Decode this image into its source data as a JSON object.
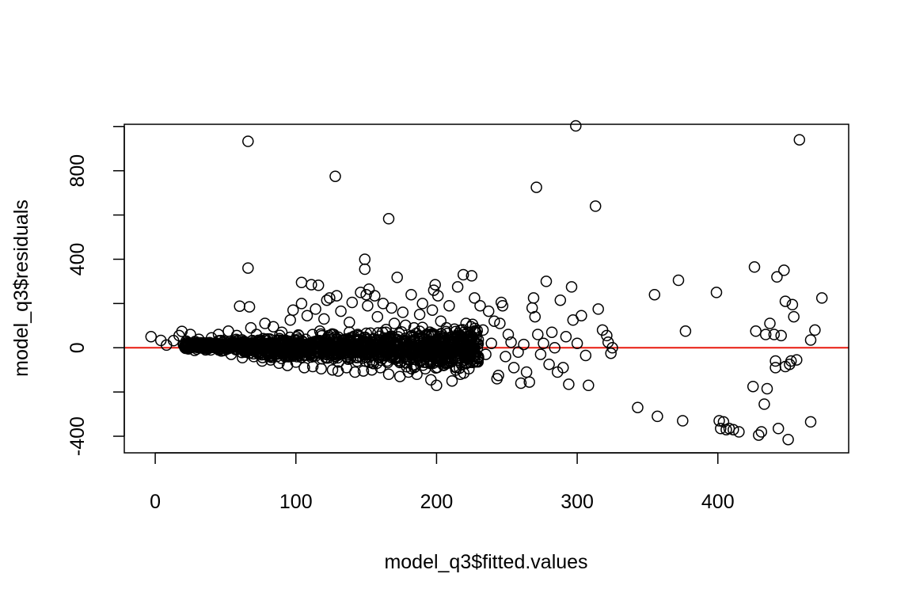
{
  "chart_data": {
    "type": "scatter",
    "title": "",
    "xlabel": "model_q3$fitted.values",
    "ylabel": "model_q3$residuals",
    "xlim": [
      -22,
      493
    ],
    "ylim": [
      -475,
      1010
    ],
    "x_ticks": [
      0,
      100,
      200,
      300,
      400
    ],
    "y_ticks": [
      -400,
      -200,
      0,
      200,
      400,
      600,
      800,
      1000
    ],
    "y_tick_labels": [
      "-400",
      "",
      "0",
      "",
      "400",
      "",
      "800",
      ""
    ],
    "grid": false,
    "legend": "none",
    "marker": "open-circle",
    "point_color": "#000000",
    "reference_line": {
      "y": 0,
      "color": "#e8190f"
    },
    "series": [
      {
        "points": [
          [
            -3,
            50
          ],
          [
            4,
            33
          ],
          [
            8,
            12
          ],
          [
            13,
            32
          ],
          [
            17,
            55
          ],
          [
            19,
            74
          ],
          [
            22,
            30
          ],
          [
            25,
            60
          ],
          [
            28,
            -12
          ],
          [
            31,
            38
          ],
          [
            34,
            22
          ],
          [
            37,
            -5
          ],
          [
            40,
            45
          ],
          [
            42,
            15
          ],
          [
            45,
            60
          ],
          [
            47,
            -15
          ],
          [
            49,
            30
          ],
          [
            52,
            75
          ],
          [
            54,
            -30
          ],
          [
            56,
            10
          ],
          [
            58,
            55
          ],
          [
            60,
            188
          ],
          [
            62,
            -45
          ],
          [
            64,
            20
          ],
          [
            66,
            360
          ],
          [
            66,
            933
          ],
          [
            67,
            185
          ],
          [
            68,
            90
          ],
          [
            70,
            -40
          ],
          [
            72,
            60
          ],
          [
            74,
            15
          ],
          [
            76,
            -60
          ],
          [
            78,
            110
          ],
          [
            80,
            40
          ],
          [
            82,
            -55
          ],
          [
            84,
            95
          ],
          [
            86,
            0
          ],
          [
            88,
            -70
          ],
          [
            90,
            70
          ],
          [
            92,
            30
          ],
          [
            94,
            -80
          ],
          [
            96,
            125
          ],
          [
            98,
            170
          ],
          [
            100,
            -65
          ],
          [
            102,
            55
          ],
          [
            104,
            295
          ],
          [
            104,
            200
          ],
          [
            106,
            -90
          ],
          [
            108,
            145
          ],
          [
            110,
            10
          ],
          [
            111,
            285
          ],
          [
            112,
            -85
          ],
          [
            114,
            175
          ],
          [
            116,
            282
          ],
          [
            117,
            75
          ],
          [
            118,
            -95
          ],
          [
            120,
            130
          ],
          [
            122,
            215
          ],
          [
            124,
            225
          ],
          [
            126,
            -100
          ],
          [
            127,
            60
          ],
          [
            128,
            775
          ],
          [
            129,
            235
          ],
          [
            130,
            -105
          ],
          [
            132,
            165
          ],
          [
            134,
            20
          ],
          [
            136,
            -90
          ],
          [
            138,
            115
          ],
          [
            140,
            205
          ],
          [
            142,
            -110
          ],
          [
            144,
            60
          ],
          [
            146,
            250
          ],
          [
            148,
            -105
          ],
          [
            149,
            400
          ],
          [
            149,
            355
          ],
          [
            150,
            240
          ],
          [
            151,
            190
          ],
          [
            152,
            265
          ],
          [
            154,
            -100
          ],
          [
            156,
            235
          ],
          [
            158,
            140
          ],
          [
            160,
            -90
          ],
          [
            162,
            200
          ],
          [
            164,
            70
          ],
          [
            166,
            583
          ],
          [
            166,
            -120
          ],
          [
            168,
            180
          ],
          [
            170,
            110
          ],
          [
            172,
            318
          ],
          [
            174,
            -130
          ],
          [
            176,
            160
          ],
          [
            178,
            30
          ],
          [
            180,
            -110
          ],
          [
            182,
            240
          ],
          [
            184,
            90
          ],
          [
            186,
            -120
          ],
          [
            188,
            150
          ],
          [
            190,
            200
          ],
          [
            192,
            -95
          ],
          [
            194,
            60
          ],
          [
            196,
            -145
          ],
          [
            197,
            170
          ],
          [
            198,
            260
          ],
          [
            199,
            285
          ],
          [
            200,
            -170
          ],
          [
            201,
            235
          ],
          [
            203,
            120
          ],
          [
            205,
            -80
          ],
          [
            207,
            90
          ],
          [
            209,
            190
          ],
          [
            211,
            -150
          ],
          [
            213,
            40
          ],
          [
            215,
            275
          ],
          [
            217,
            -120
          ],
          [
            219,
            330
          ],
          [
            221,
            110
          ],
          [
            223,
            -95
          ],
          [
            225,
            325
          ],
          [
            227,
            225
          ],
          [
            229,
            -60
          ],
          [
            231,
            190
          ],
          [
            233,
            80
          ],
          [
            235,
            -30
          ],
          [
            237,
            165
          ],
          [
            239,
            20
          ],
          [
            241,
            120
          ],
          [
            243,
            -140
          ],
          [
            244,
            -125
          ],
          [
            245,
            110
          ],
          [
            246,
            205
          ],
          [
            247,
            190
          ],
          [
            249,
            -40
          ],
          [
            251,
            60
          ],
          [
            253,
            25
          ],
          [
            255,
            -90
          ],
          [
            258,
            -20
          ],
          [
            260,
            -160
          ],
          [
            262,
            15
          ],
          [
            264,
            -110
          ],
          [
            266,
            -155
          ],
          [
            268,
            180
          ],
          [
            269,
            225
          ],
          [
            270,
            140
          ],
          [
            271,
            725
          ],
          [
            272,
            60
          ],
          [
            274,
            -30
          ],
          [
            276,
            20
          ],
          [
            278,
            300
          ],
          [
            280,
            -75
          ],
          [
            282,
            70
          ],
          [
            284,
            0
          ],
          [
            286,
            -110
          ],
          [
            288,
            215
          ],
          [
            290,
            -90
          ],
          [
            292,
            50
          ],
          [
            294,
            -165
          ],
          [
            296,
            275
          ],
          [
            297,
            125
          ],
          [
            299,
            1003
          ],
          [
            300,
            20
          ],
          [
            303,
            145
          ],
          [
            306,
            -35
          ],
          [
            308,
            -170
          ],
          [
            313,
            640
          ],
          [
            315,
            175
          ],
          [
            318,
            80
          ],
          [
            321,
            55
          ],
          [
            322,
            25
          ],
          [
            324,
            -25
          ],
          [
            325,
            0
          ],
          [
            343,
            -270
          ],
          [
            355,
            240
          ],
          [
            357,
            -310
          ],
          [
            372,
            305
          ],
          [
            375,
            -330
          ],
          [
            377,
            75
          ],
          [
            399,
            250
          ],
          [
            401,
            -330
          ],
          [
            402,
            -365
          ],
          [
            404,
            -335
          ],
          [
            406,
            -370
          ],
          [
            408,
            -365
          ],
          [
            411,
            -370
          ],
          [
            415,
            -380
          ],
          [
            425,
            -175
          ],
          [
            426,
            365
          ],
          [
            427,
            75
          ],
          [
            429,
            -395
          ],
          [
            431,
            -380
          ],
          [
            433,
            -255
          ],
          [
            434,
            60
          ],
          [
            435,
            -185
          ],
          [
            437,
            110
          ],
          [
            440,
            60
          ],
          [
            441,
            -60
          ],
          [
            441,
            -90
          ],
          [
            442,
            320
          ],
          [
            443,
            -365
          ],
          [
            445,
            55
          ],
          [
            447,
            350
          ],
          [
            448,
            210
          ],
          [
            448,
            -85
          ],
          [
            450,
            -415
          ],
          [
            451,
            -75
          ],
          [
            452,
            -60
          ],
          [
            453,
            195
          ],
          [
            454,
            140
          ],
          [
            456,
            -55
          ],
          [
            458,
            940
          ],
          [
            466,
            35
          ],
          [
            466,
            -335
          ],
          [
            469,
            80
          ],
          [
            474,
            225
          ]
        ],
        "dense_cloud": {
          "x_range": [
            20,
            230
          ],
          "note": "wedge-shaped dense band of points around zero residual"
        }
      }
    ]
  }
}
